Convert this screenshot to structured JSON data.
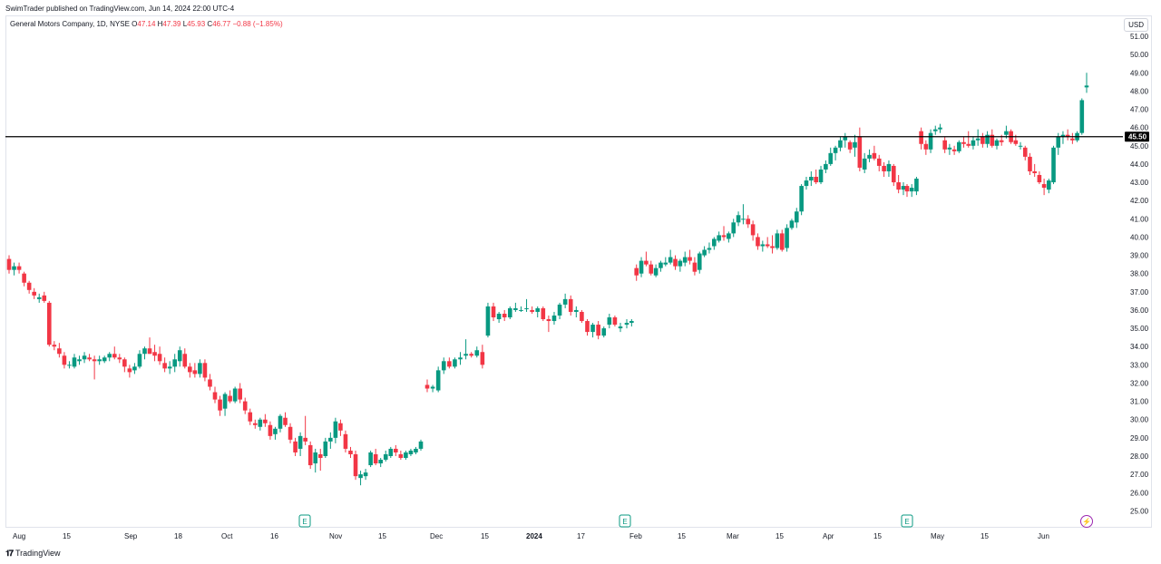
{
  "header": {
    "published": "SwimTrader published on TradingView.com, Jun 14, 2024 22:00 UTC-4"
  },
  "legend": {
    "symbol": "General Motors Company, 1D, NYSE",
    "o_label": "O",
    "o_value": "47.14",
    "h_label": "H",
    "h_value": "47.39",
    "l_label": "L",
    "l_value": "45.93",
    "c_label": "C",
    "c_value": "46.77",
    "change": "−0.88 (−1.85%)"
  },
  "currency_button": "USD",
  "footer_logo": "TradingView",
  "colors": {
    "up": "#089981",
    "down": "#f23645",
    "grid": "#f0f3fa",
    "text": "#131722"
  },
  "chart_data": {
    "type": "candlestick",
    "ylim": [
      25,
      51
    ],
    "y_ticks": [
      "51.00",
      "50.00",
      "49.00",
      "48.00",
      "47.00",
      "46.00",
      "45.00",
      "44.00",
      "43.00",
      "42.00",
      "41.00",
      "40.00",
      "39.00",
      "38.00",
      "37.00",
      "36.00",
      "35.00",
      "34.00",
      "33.00",
      "32.00",
      "31.00",
      "30.00",
      "29.00",
      "28.00",
      "27.00",
      "26.00",
      "25.00"
    ],
    "x_ticks": [
      {
        "label": "Aug",
        "bold": false
      },
      {
        "label": "15",
        "bold": false
      },
      {
        "label": "Sep",
        "bold": false
      },
      {
        "label": "18",
        "bold": false
      },
      {
        "label": "Oct",
        "bold": false
      },
      {
        "label": "16",
        "bold": false
      },
      {
        "label": "Nov",
        "bold": false
      },
      {
        "label": "15",
        "bold": false
      },
      {
        "label": "Dec",
        "bold": false
      },
      {
        "label": "15",
        "bold": false
      },
      {
        "label": "2024",
        "bold": true
      },
      {
        "label": "17",
        "bold": false
      },
      {
        "label": "Feb",
        "bold": false
      },
      {
        "label": "15",
        "bold": false
      },
      {
        "label": "Mar",
        "bold": false
      },
      {
        "label": "15",
        "bold": false
      },
      {
        "label": "Apr",
        "bold": false
      },
      {
        "label": "15",
        "bold": false
      },
      {
        "label": "May",
        "bold": false
      },
      {
        "label": "15",
        "bold": false
      },
      {
        "label": "Jun",
        "bold": false
      }
    ],
    "horizontal_line": {
      "value": 45.5,
      "label": "45.50"
    },
    "events": [
      {
        "type": "earnings",
        "label": "E"
      },
      {
        "type": "earnings",
        "label": "E"
      },
      {
        "type": "earnings",
        "label": "E"
      },
      {
        "type": "dividend",
        "label": "⚡"
      }
    ],
    "candles": [
      [
        38.8,
        39.0,
        38.0,
        38.2
      ],
      [
        38.2,
        38.6,
        37.9,
        38.4
      ],
      [
        38.4,
        38.6,
        38.0,
        38.2
      ],
      [
        38.0,
        38.1,
        37.3,
        37.5
      ],
      [
        37.5,
        37.6,
        36.9,
        37.1
      ],
      [
        37.0,
        37.2,
        36.6,
        36.8
      ],
      [
        36.6,
        36.9,
        36.4,
        36.7
      ],
      [
        36.8,
        37.0,
        36.4,
        36.5
      ],
      [
        36.4,
        36.5,
        34.0,
        34.1
      ],
      [
        34.1,
        34.3,
        33.8,
        34.0
      ],
      [
        33.9,
        34.2,
        33.4,
        33.6
      ],
      [
        33.5,
        33.7,
        32.8,
        33.0
      ],
      [
        33.0,
        33.2,
        32.8,
        33.0
      ],
      [
        32.9,
        33.6,
        32.8,
        33.4
      ],
      [
        33.2,
        33.5,
        33.0,
        33.3
      ],
      [
        33.3,
        33.7,
        33.1,
        33.5
      ],
      [
        33.4,
        33.6,
        33.2,
        33.3
      ],
      [
        33.3,
        33.5,
        32.2,
        33.2
      ],
      [
        33.2,
        33.5,
        33.0,
        33.3
      ],
      [
        33.2,
        33.5,
        33.1,
        33.4
      ],
      [
        33.4,
        33.7,
        33.2,
        33.6
      ],
      [
        33.6,
        34.0,
        33.3,
        33.4
      ],
      [
        33.4,
        33.6,
        33.1,
        33.3
      ],
      [
        33.3,
        33.4,
        32.6,
        32.9
      ],
      [
        32.8,
        33.0,
        32.3,
        32.6
      ],
      [
        32.7,
        33.1,
        32.5,
        32.9
      ],
      [
        32.9,
        33.8,
        32.8,
        33.6
      ],
      [
        33.6,
        34.0,
        33.3,
        33.9
      ],
      [
        33.9,
        34.5,
        33.6,
        33.6
      ],
      [
        33.7,
        34.1,
        33.2,
        33.5
      ],
      [
        33.6,
        34.0,
        33.0,
        33.2
      ],
      [
        33.1,
        33.4,
        32.6,
        32.8
      ],
      [
        32.8,
        33.2,
        32.5,
        32.9
      ],
      [
        32.9,
        33.6,
        32.6,
        33.3
      ],
      [
        33.2,
        34.0,
        32.9,
        33.8
      ],
      [
        33.6,
        33.9,
        32.8,
        32.9
      ],
      [
        32.9,
        33.1,
        32.3,
        32.6
      ],
      [
        32.7,
        33.1,
        32.3,
        32.5
      ],
      [
        32.5,
        33.3,
        32.3,
        33.1
      ],
      [
        33.1,
        33.3,
        32.1,
        32.3
      ],
      [
        32.2,
        32.5,
        31.6,
        31.8
      ],
      [
        31.5,
        31.8,
        30.9,
        31.1
      ],
      [
        31.1,
        31.3,
        30.2,
        30.5
      ],
      [
        30.6,
        31.5,
        30.2,
        31.4
      ],
      [
        31.3,
        31.6,
        30.9,
        31.0
      ],
      [
        31.0,
        31.8,
        30.9,
        31.7
      ],
      [
        31.7,
        32.0,
        30.9,
        31.1
      ],
      [
        31.0,
        31.2,
        30.3,
        30.5
      ],
      [
        30.4,
        30.6,
        29.7,
        29.9
      ],
      [
        29.8,
        30.0,
        29.5,
        29.7
      ],
      [
        29.6,
        30.1,
        29.4,
        30.0
      ],
      [
        30.0,
        30.3,
        29.6,
        29.8
      ],
      [
        29.7,
        29.9,
        28.9,
        29.1
      ],
      [
        29.2,
        29.6,
        28.9,
        29.5
      ],
      [
        29.5,
        30.3,
        29.3,
        30.2
      ],
      [
        30.1,
        30.4,
        29.6,
        29.7
      ],
      [
        29.6,
        29.8,
        28.7,
        28.9
      ],
      [
        28.8,
        29.0,
        28.0,
        28.2
      ],
      [
        28.4,
        29.3,
        28.0,
        29.1
      ],
      [
        29.0,
        30.2,
        28.6,
        28.8
      ],
      [
        28.6,
        28.8,
        27.3,
        27.5
      ],
      [
        27.6,
        28.4,
        27.1,
        28.2
      ],
      [
        28.1,
        28.4,
        27.2,
        27.9
      ],
      [
        28.0,
        29.0,
        27.9,
        28.8
      ],
      [
        28.8,
        29.3,
        28.4,
        29.0
      ],
      [
        29.0,
        30.1,
        28.7,
        29.9
      ],
      [
        29.8,
        30.0,
        29.1,
        29.4
      ],
      [
        29.2,
        29.4,
        28.2,
        28.4
      ],
      [
        28.3,
        28.5,
        27.9,
        28.1
      ],
      [
        28.1,
        28.3,
        26.7,
        26.9
      ],
      [
        26.8,
        27.2,
        26.4,
        27.0
      ],
      [
        26.9,
        27.3,
        26.7,
        27.1
      ],
      [
        27.5,
        28.3,
        27.4,
        28.2
      ],
      [
        28.1,
        28.4,
        27.5,
        27.6
      ],
      [
        27.6,
        27.9,
        27.4,
        27.8
      ],
      [
        27.8,
        28.3,
        27.7,
        28.1
      ],
      [
        28.0,
        28.5,
        27.9,
        28.4
      ],
      [
        28.4,
        28.6,
        28.0,
        28.2
      ],
      [
        28.1,
        28.3,
        27.8,
        27.9
      ],
      [
        27.9,
        28.3,
        27.8,
        28.2
      ],
      [
        28.1,
        28.4,
        28.0,
        28.3
      ],
      [
        28.2,
        28.5,
        28.1,
        28.4
      ],
      [
        28.4,
        28.9,
        28.3,
        28.8
      ],
      [
        31.9,
        32.2,
        31.5,
        31.7
      ],
      [
        31.7,
        31.9,
        31.5,
        31.8
      ],
      [
        31.6,
        32.9,
        31.5,
        32.7
      ],
      [
        32.7,
        33.4,
        32.5,
        33.2
      ],
      [
        33.2,
        33.4,
        32.8,
        32.9
      ],
      [
        32.9,
        33.4,
        32.8,
        33.3
      ],
      [
        33.3,
        33.7,
        33.0,
        33.4
      ],
      [
        33.5,
        34.4,
        33.3,
        33.6
      ],
      [
        33.6,
        33.7,
        33.4,
        33.5
      ],
      [
        33.5,
        34.0,
        33.4,
        33.8
      ],
      [
        33.7,
        34.1,
        32.8,
        33.0
      ],
      [
        34.6,
        36.4,
        34.5,
        36.2
      ],
      [
        36.2,
        36.4,
        35.4,
        35.6
      ],
      [
        35.5,
        35.9,
        35.3,
        35.8
      ],
      [
        35.8,
        36.0,
        35.4,
        35.6
      ],
      [
        35.6,
        36.2,
        35.5,
        36.1
      ],
      [
        36.0,
        36.4,
        35.9,
        36.1
      ],
      [
        36.0,
        36.2,
        35.9,
        36.0
      ],
      [
        36.1,
        36.6,
        35.9,
        36.1
      ],
      [
        36.0,
        36.2,
        35.8,
        35.9
      ],
      [
        35.9,
        36.2,
        35.6,
        36.1
      ],
      [
        36.1,
        36.2,
        35.4,
        35.5
      ],
      [
        35.5,
        35.7,
        34.8,
        35.4
      ],
      [
        35.4,
        35.9,
        35.2,
        35.7
      ],
      [
        35.7,
        36.4,
        35.5,
        36.3
      ],
      [
        36.3,
        36.9,
        36.1,
        36.6
      ],
      [
        36.6,
        36.8,
        35.7,
        35.9
      ],
      [
        35.9,
        36.2,
        35.6,
        36.0
      ],
      [
        35.9,
        36.0,
        35.3,
        35.4
      ],
      [
        35.4,
        35.5,
        34.6,
        34.8
      ],
      [
        34.8,
        35.3,
        34.5,
        35.2
      ],
      [
        35.2,
        35.4,
        34.4,
        34.6
      ],
      [
        34.6,
        35.1,
        34.5,
        35.0
      ],
      [
        35.2,
        35.8,
        35.0,
        35.6
      ],
      [
        35.6,
        35.7,
        35.1,
        35.2
      ],
      [
        35.0,
        35.3,
        34.8,
        35.1
      ],
      [
        35.2,
        35.5,
        35.0,
        35.3
      ],
      [
        35.3,
        35.5,
        35.1,
        35.4
      ],
      [
        38.3,
        38.5,
        37.6,
        37.9
      ],
      [
        38.0,
        38.9,
        37.8,
        38.7
      ],
      [
        38.7,
        39.2,
        38.4,
        38.5
      ],
      [
        38.5,
        38.7,
        37.9,
        38.0
      ],
      [
        37.9,
        38.5,
        37.8,
        38.3
      ],
      [
        38.3,
        38.7,
        38.1,
        38.6
      ],
      [
        38.5,
        38.9,
        38.4,
        38.6
      ],
      [
        38.6,
        39.3,
        38.5,
        38.9
      ],
      [
        38.8,
        39.0,
        38.2,
        38.4
      ],
      [
        38.4,
        38.8,
        38.1,
        38.7
      ],
      [
        38.6,
        39.2,
        38.4,
        38.9
      ],
      [
        38.9,
        39.3,
        38.5,
        38.7
      ],
      [
        38.6,
        38.9,
        37.9,
        38.1
      ],
      [
        38.2,
        39.2,
        38.0,
        39.1
      ],
      [
        39.0,
        39.5,
        38.9,
        39.3
      ],
      [
        39.3,
        39.7,
        39.1,
        39.4
      ],
      [
        39.5,
        40.0,
        39.3,
        39.9
      ],
      [
        39.8,
        40.3,
        39.7,
        40.1
      ],
      [
        40.1,
        40.6,
        39.8,
        40.0
      ],
      [
        39.9,
        40.3,
        39.7,
        40.2
      ],
      [
        40.2,
        41.0,
        40.0,
        40.8
      ],
      [
        40.8,
        41.4,
        40.6,
        41.2
      ],
      [
        41.0,
        41.8,
        40.7,
        41.0
      ],
      [
        41.0,
        41.2,
        40.5,
        40.7
      ],
      [
        40.7,
        40.9,
        39.8,
        40.1
      ],
      [
        40.0,
        40.2,
        39.3,
        39.5
      ],
      [
        39.5,
        39.8,
        39.2,
        39.6
      ],
      [
        39.6,
        40.0,
        39.4,
        39.5
      ],
      [
        39.5,
        40.1,
        39.1,
        39.4
      ],
      [
        39.4,
        40.4,
        39.3,
        40.2
      ],
      [
        40.2,
        40.4,
        39.2,
        39.3
      ],
      [
        39.4,
        40.7,
        39.2,
        40.5
      ],
      [
        40.5,
        41.0,
        40.4,
        40.9
      ],
      [
        40.8,
        41.6,
        40.5,
        41.4
      ],
      [
        41.4,
        42.9,
        41.2,
        42.8
      ],
      [
        42.8,
        43.3,
        42.6,
        43.1
      ],
      [
        43.1,
        43.6,
        42.8,
        43.3
      ],
      [
        43.3,
        43.7,
        42.9,
        43.0
      ],
      [
        43.0,
        43.9,
        42.9,
        43.7
      ],
      [
        43.7,
        44.2,
        43.5,
        44.0
      ],
      [
        44.0,
        44.9,
        43.9,
        44.6
      ],
      [
        44.6,
        45.0,
        44.2,
        44.9
      ],
      [
        44.9,
        45.5,
        44.7,
        45.3
      ],
      [
        45.3,
        45.7,
        44.9,
        45.5
      ],
      [
        45.2,
        45.3,
        44.6,
        44.8
      ],
      [
        44.9,
        45.6,
        44.4,
        45.2
      ],
      [
        45.5,
        46.0,
        43.6,
        43.8
      ],
      [
        43.7,
        44.6,
        43.5,
        44.3
      ],
      [
        44.3,
        44.8,
        44.1,
        44.5
      ],
      [
        44.6,
        45.0,
        44.2,
        44.3
      ],
      [
        44.3,
        44.5,
        43.6,
        43.9
      ],
      [
        43.9,
        44.1,
        43.3,
        43.6
      ],
      [
        43.6,
        44.2,
        43.3,
        44.0
      ],
      [
        43.9,
        44.0,
        42.8,
        43.0
      ],
      [
        43.0,
        43.4,
        42.4,
        42.6
      ],
      [
        42.6,
        43.0,
        42.3,
        42.8
      ],
      [
        42.8,
        42.9,
        42.2,
        42.5
      ],
      [
        42.5,
        42.9,
        42.2,
        42.7
      ],
      [
        42.5,
        43.3,
        42.3,
        43.2
      ],
      [
        45.8,
        46.0,
        44.8,
        45.1
      ],
      [
        45.1,
        45.3,
        44.5,
        44.8
      ],
      [
        44.8,
        45.9,
        44.6,
        45.7
      ],
      [
        45.8,
        46.1,
        45.6,
        45.9
      ],
      [
        45.9,
        46.2,
        45.7,
        46.0
      ],
      [
        45.3,
        45.5,
        44.6,
        44.8
      ],
      [
        44.8,
        45.1,
        44.5,
        44.9
      ],
      [
        44.8,
        45.0,
        44.5,
        44.7
      ],
      [
        44.7,
        45.3,
        44.6,
        45.2
      ],
      [
        45.2,
        45.5,
        44.9,
        45.1
      ],
      [
        45.1,
        45.8,
        44.9,
        45.0
      ],
      [
        45.0,
        45.5,
        44.8,
        45.3
      ],
      [
        45.3,
        45.9,
        45.0,
        45.4
      ],
      [
        45.5,
        45.7,
        44.9,
        45.1
      ],
      [
        45.1,
        45.8,
        44.9,
        45.6
      ],
      [
        45.6,
        45.9,
        44.9,
        45.0
      ],
      [
        45.0,
        45.4,
        44.8,
        45.3
      ],
      [
        45.3,
        45.6,
        45.0,
        45.2
      ],
      [
        45.6,
        46.1,
        45.4,
        45.8
      ],
      [
        45.8,
        45.9,
        45.1,
        45.2
      ],
      [
        45.3,
        45.6,
        45.0,
        45.1
      ],
      [
        45.0,
        45.2,
        44.8,
        45.0
      ],
      [
        44.9,
        45.0,
        44.2,
        44.4
      ],
      [
        44.4,
        44.6,
        43.4,
        43.6
      ],
      [
        43.6,
        44.0,
        43.3,
        43.5
      ],
      [
        43.4,
        43.6,
        42.9,
        43.0
      ],
      [
        42.9,
        43.2,
        42.3,
        42.7
      ],
      [
        42.6,
        43.2,
        42.4,
        43.1
      ],
      [
        43.0,
        45.0,
        42.9,
        44.9
      ],
      [
        44.9,
        45.7,
        44.5,
        45.5
      ],
      [
        45.5,
        45.8,
        45.1,
        45.6
      ],
      [
        45.6,
        45.9,
        45.3,
        45.5
      ],
      [
        45.4,
        45.7,
        45.1,
        45.3
      ],
      [
        45.3,
        45.8,
        45.2,
        45.7
      ],
      [
        45.7,
        47.6,
        45.6,
        47.5
      ],
      [
        48.2,
        49.0,
        47.9,
        48.3
      ],
      [
        48.6,
        49.4,
        48.5,
        48.7
      ],
      [
        48.6,
        48.7,
        47.4,
        47.6
      ],
      [
        47.14,
        47.39,
        45.93,
        46.77
      ]
    ]
  }
}
